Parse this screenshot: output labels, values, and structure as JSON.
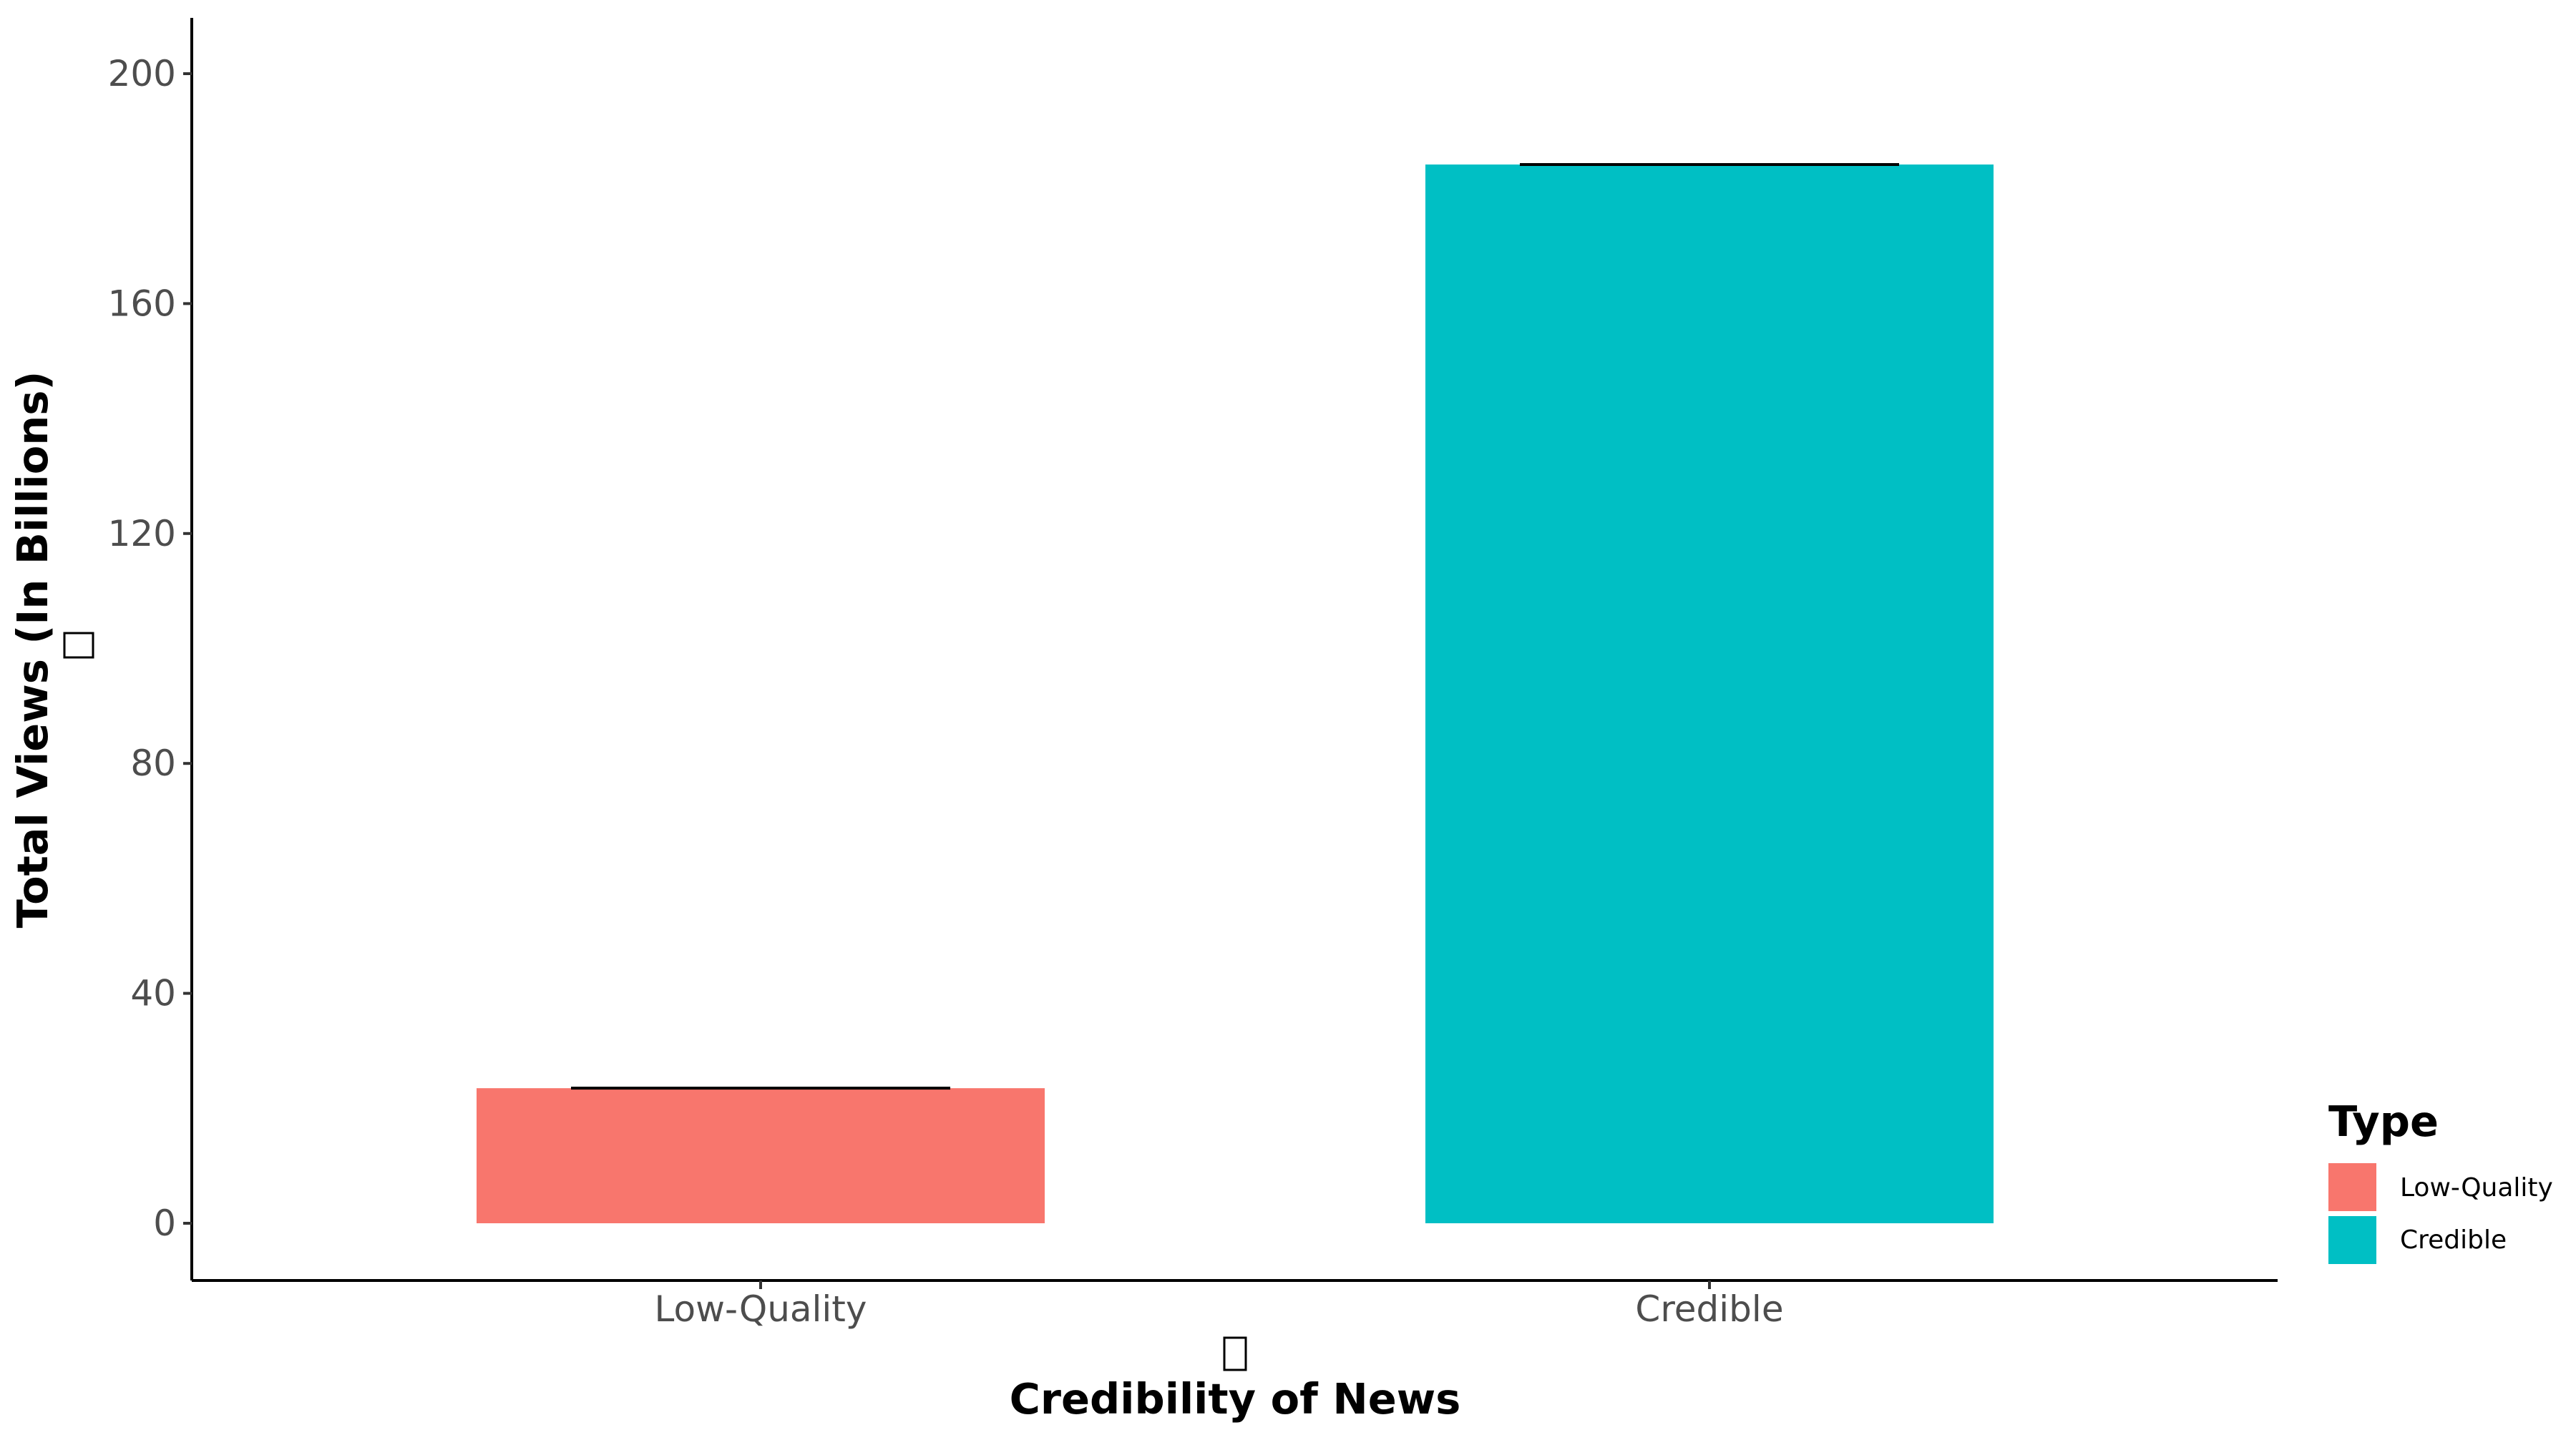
{
  "chart_data": {
    "type": "bar",
    "categories": [
      "Low-Quality",
      "Credible"
    ],
    "values": [
      23.5,
      184.2
    ],
    "colors": [
      "#F8766D",
      "#00BFC4"
    ],
    "error_bar_tops": [
      23.5,
      184.2
    ],
    "xlabel": "Credibility of News",
    "ylabel": "Total Views (In Billions)",
    "ylim": [
      -10,
      210
    ],
    "yticks": [
      0,
      40,
      80,
      120,
      160,
      200
    ],
    "ytick_labels": [
      "0",
      "40",
      "80",
      "120",
      "160",
      "200"
    ],
    "grid": false,
    "legend": {
      "title": "Type",
      "placement": "right",
      "entries": [
        "Low-Quality",
        "Credible"
      ]
    }
  }
}
